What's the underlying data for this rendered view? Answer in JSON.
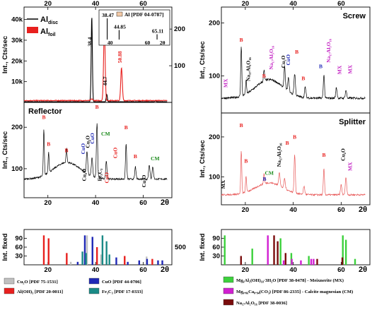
{
  "chart_data": [
    {
      "panel": "al",
      "type": "line",
      "xlim": [
        10,
        72
      ],
      "ylim": [
        0,
        46000
      ],
      "ylim_right": [
        0,
        260
      ],
      "top_ticks": [
        "20",
        "40",
        "60"
      ],
      "yticks": [
        {
          "v": 10000,
          "t": "10k"
        },
        {
          "v": 20000,
          "t": "20k"
        },
        {
          "v": 30000,
          "t": "30k"
        },
        {
          "v": 40000,
          "t": "40k"
        }
      ],
      "yticks_right": [
        {
          "v": 100,
          "t": "100"
        },
        {
          "v": 200,
          "t": "200"
        }
      ],
      "ylabel": "Int., Cts/sec",
      "legend": [
        {
          "main": "Al",
          "sub": "disc",
          "color": "#000000"
        },
        {
          "main": "Al",
          "sub": "foil",
          "color": "#e8201e"
        }
      ],
      "series": [
        {
          "name": "Al disc",
          "color": "#000000",
          "axis": "left",
          "baseline": 300,
          "peaks": [
            [
              38.4,
              41000,
              0.35
            ],
            [
              44.7,
              3500,
              0.35
            ],
            [
              65.1,
              400,
              0.4
            ]
          ]
        },
        {
          "name": "Al foil",
          "color": "#e8201e",
          "axis": "right",
          "baseline": 5,
          "peaks": [
            [
              43.68,
              205,
              0.45
            ],
            [
              50.88,
              90,
              0.45
            ],
            [
              38.4,
              4,
              0.6
            ]
          ]
        }
      ],
      "peak_labels": [
        {
          "x": 38.4,
          "y": 27000,
          "text": "38.4",
          "color": "#000000",
          "rot": -90
        },
        {
          "x": 43.68,
          "y": 37000,
          "text": "43.68",
          "color": "#e8201e",
          "rot": -90
        },
        {
          "x": 44.7,
          "y": 8000,
          "text": "44.7",
          "color": "#000000",
          "rot": -90
        },
        {
          "x": 50.88,
          "y": 19000,
          "text": "50.88",
          "color": "#e8201e",
          "rot": -90
        }
      ],
      "inset": {
        "title": "Al [PDF 04-0787]",
        "swatch": "#f2c9a6",
        "xlim": [
          36,
          70
        ],
        "ticks": [
          "40",
          "60",
          "2θ"
        ],
        "lines": [
          {
            "x": 38.47,
            "h": 1.0,
            "label": "38.47"
          },
          {
            "x": 44.85,
            "h": 0.45,
            "label": "44.85"
          },
          {
            "x": 65.11,
            "h": 0.25,
            "label": "65.11"
          }
        ]
      }
    },
    {
      "panel": "reflector",
      "type": "line",
      "title": "Reflector",
      "xlim": [
        10,
        72
      ],
      "ylim": [
        30,
        260
      ],
      "xticks": [
        "20",
        "40",
        "60",
        "2θ"
      ],
      "yticks": [
        {
          "v": 100,
          "t": "100"
        },
        {
          "v": 200,
          "t": "200"
        }
      ],
      "ylabel": "Int., Cts/sec",
      "series": [
        {
          "name": "Reflector",
          "color": "#000000",
          "baseline": 75,
          "hump": [
            28,
            40,
            0.2
          ],
          "peaks": [
            [
              18.3,
              110,
              0.3
            ],
            [
              20.3,
              50,
              0.3
            ],
            [
              27.8,
              35,
              0.3
            ],
            [
              36.4,
              55,
              0.4
            ],
            [
              38.5,
              45,
              0.4
            ],
            [
              40.6,
              130,
              0.35
            ],
            [
              44.5,
              45,
              0.35
            ],
            [
              52.8,
              85,
              0.35
            ],
            [
              56.7,
              30,
              0.35
            ],
            [
              62.5,
              35,
              0.4
            ],
            [
              64.0,
              30,
              0.4
            ]
          ]
        }
      ],
      "peak_labels": [
        {
          "x": 18.3,
          "y": 220,
          "text": "B",
          "color": "#e8201e"
        },
        {
          "x": 20.3,
          "y": 155,
          "text": "B",
          "color": "#e8201e"
        },
        {
          "x": 27.8,
          "y": 140,
          "text": "B",
          "color": "#e8201e"
        },
        {
          "x": 35.5,
          "y": 135,
          "text": "CuO",
          "color": "#1f28b6",
          "rot": -90
        },
        {
          "x": 37.5,
          "y": 150,
          "text": "Cu₂O",
          "color": "#000000",
          "rot": -90
        },
        {
          "x": 39.3,
          "y": 160,
          "text": "CuO",
          "color": "#1f28b6",
          "rot": -90
        },
        {
          "x": 40.6,
          "y": 245,
          "text": "B",
          "color": "#e8201e"
        },
        {
          "x": 44.2,
          "y": 180,
          "text": "CM",
          "color": "#1b8a1b"
        },
        {
          "x": 36.0,
          "y": 70,
          "text": "Cu₂O",
          "color": "#000000",
          "rot": -90
        },
        {
          "x": 42.5,
          "y": 70,
          "text": "Fe₃C₃",
          "color": "#000000",
          "rot": -90
        },
        {
          "x": 45.5,
          "y": 65,
          "text": "CuO",
          "color": "#e8201e",
          "rot": -90
        },
        {
          "x": 49.0,
          "y": 125,
          "text": "CuO",
          "color": "#e8201e",
          "rot": -90
        },
        {
          "x": 52.8,
          "y": 195,
          "text": "B",
          "color": "#e8201e"
        },
        {
          "x": 56.7,
          "y": 125,
          "text": "B",
          "color": "#e8201e"
        },
        {
          "x": 61.0,
          "y": 55,
          "text": "Cu₂O",
          "color": "#000000",
          "rot": -90
        },
        {
          "x": 65.0,
          "y": 120,
          "text": "CM",
          "color": "#1b8a1b"
        }
      ]
    },
    {
      "panel": "ref-left",
      "type": "bar",
      "ylabel": "Int. fixed",
      "xlim": [
        10,
        72
      ],
      "ylim": [
        0,
        120
      ],
      "yticks": [
        {
          "v": 30,
          "t": "30"
        },
        {
          "v": 60,
          "t": "60"
        },
        {
          "v": 90,
          "t": "90"
        }
      ],
      "right_tick": "500",
      "xticks": [
        "20",
        "40",
        "60",
        "2θ"
      ],
      "series": [
        {
          "name": "Cu₂O [PDF 75-1531]",
          "color": "#c0c0c0",
          "x": [
            29.6,
            36.4,
            42.3,
            61.4,
            73.5
          ],
          "values": [
            10,
            100,
            35,
            28,
            20
          ]
        },
        {
          "name": "CuO [PDF 44-0706]",
          "color": "#1f28b6",
          "x": [
            32.5,
            35.5,
            38.7,
            48.7,
            53.5,
            58.3,
            61.6,
            66.2,
            68.0
          ],
          "values": [
            10,
            100,
            95,
            25,
            10,
            15,
            20,
            15,
            15
          ]
        },
        {
          "name": "Al(OH)₃ [PDF 20-0011]",
          "color": "#e8201e",
          "x": [
            18.3,
            20.3,
            27.9,
            40.6,
            52.2,
            63.8
          ],
          "values": [
            100,
            90,
            40,
            60,
            30,
            20
          ]
        },
        {
          "name": "Fe₃C₃ [PDF 17-0333]",
          "color": "#1a8a86",
          "x": [
            34.5,
            36.0,
            42.9,
            44.6,
            45.8
          ],
          "values": [
            45,
            40,
            100,
            80,
            35
          ]
        }
      ]
    },
    {
      "panel": "screw",
      "type": "line",
      "title": "Screw",
      "xlim": [
        10,
        72
      ],
      "ylim": [
        30,
        230
      ],
      "top_ticks": [
        "20",
        "40",
        "60"
      ],
      "yticks": [
        {
          "v": 100,
          "t": "100"
        },
        {
          "v": 200,
          "t": "200"
        }
      ],
      "ylabel": "Int., Cts/sec",
      "series": [
        {
          "name": "Screw",
          "color": "#000000",
          "baseline": 58,
          "hump": [
            30,
            35,
            0.2
          ],
          "peaks": [
            [
              18.3,
              95,
              0.3
            ],
            [
              20.3,
              25,
              0.3
            ],
            [
              27.8,
              20,
              0.3
            ],
            [
              36.4,
              40,
              0.4
            ],
            [
              38.0,
              25,
              0.4
            ],
            [
              40.6,
              40,
              0.4
            ],
            [
              45.0,
              20,
              0.4
            ],
            [
              52.8,
              45,
              0.35
            ],
            [
              58.0,
              20,
              0.4
            ],
            [
              62.0,
              15,
              0.4
            ]
          ]
        }
      ],
      "peak_labels": [
        {
          "x": 12.5,
          "y": 78,
          "text": "MX",
          "color": "#c21fc2",
          "rot": -90
        },
        {
          "x": 18.3,
          "y": 165,
          "text": "B",
          "color": "#e8201e"
        },
        {
          "x": 22.0,
          "y": 90,
          "text": "Na₁₇Al₅O₁₆",
          "color": "#000000",
          "rot": -90
        },
        {
          "x": 27.8,
          "y": 97,
          "text": "B",
          "color": "#e8201e"
        },
        {
          "x": 31.5,
          "y": 112,
          "text": "Na₁₇Al₅O₁₆",
          "color": "#c21fc2",
          "rot": -90
        },
        {
          "x": 36.6,
          "y": 115,
          "text": "Cu₂O",
          "color": "#000000",
          "rot": -90
        },
        {
          "x": 38.6,
          "y": 120,
          "text": "CuO",
          "color": "#1f28b6",
          "rot": -90
        },
        {
          "x": 41.5,
          "y": 142,
          "text": "B",
          "color": "#e8201e"
        },
        {
          "x": 44.2,
          "y": 92,
          "text": "B",
          "color": "#e8201e"
        },
        {
          "x": 51.5,
          "y": 115,
          "text": "B",
          "color": "#1f28b6"
        },
        {
          "x": 55.5,
          "y": 125,
          "text": "Na₁₇Al₅O₁₆",
          "color": "#c21fc2",
          "rot": -90
        },
        {
          "x": 60.0,
          "y": 103,
          "text": "MX",
          "color": "#c21fc2",
          "rot": -90
        },
        {
          "x": 64.5,
          "y": 104,
          "text": "MX",
          "color": "#c21fc2",
          "rot": -90
        }
      ]
    },
    {
      "panel": "splitter",
      "type": "line",
      "title": "Splitter",
      "xlim": [
        10,
        72
      ],
      "ylim": [
        30,
        260
      ],
      "xticks": [
        "20",
        "40",
        "60",
        "2θ"
      ],
      "yticks": [
        {
          "v": 100,
          "t": "100"
        },
        {
          "v": 200,
          "t": "200"
        }
      ],
      "ylabel": "Int., Cts/sec",
      "series": [
        {
          "name": "Splitter",
          "color": "#e85a5a",
          "baseline": 55,
          "hump": [
            30,
            30,
            0.2
          ],
          "peaks": [
            [
              18.3,
              105,
              0.3
            ],
            [
              20.3,
              40,
              0.3
            ],
            [
              27.8,
              25,
              0.3
            ],
            [
              34.2,
              35,
              0.4
            ],
            [
              36.4,
              25,
              0.4
            ],
            [
              40.6,
              95,
              0.35
            ],
            [
              44.5,
              20,
              0.4
            ],
            [
              52.8,
              65,
              0.35
            ],
            [
              60.0,
              25,
              0.4
            ],
            [
              62.0,
              45,
              0.4
            ]
          ]
        }
      ],
      "peak_labels": [
        {
          "x": 11.5,
          "y": 70,
          "text": "MX",
          "color": "#000000",
          "rot": -90
        },
        {
          "x": 18.3,
          "y": 225,
          "text": "B",
          "color": "#e8201e"
        },
        {
          "x": 20.3,
          "y": 135,
          "text": "B",
          "color": "#e8201e"
        },
        {
          "x": 28.0,
          "y": 90,
          "text": "B",
          "color": "#1f28b6"
        },
        {
          "x": 30.0,
          "y": 105,
          "text": "CM",
          "color": "#1b8a1b"
        },
        {
          "x": 34.8,
          "y": 125,
          "text": "Na₁₇Al₅O₁₆",
          "color": "#000000",
          "rot": -90
        },
        {
          "x": 37.5,
          "y": 180,
          "text": "B",
          "color": "#e8201e"
        },
        {
          "x": 40.6,
          "y": 195,
          "text": "B",
          "color": "#e8201e"
        },
        {
          "x": 52.8,
          "y": 150,
          "text": "B",
          "color": "#e8201e"
        },
        {
          "x": 61.5,
          "y": 140,
          "text": "Cu₂O",
          "color": "#000000",
          "rot": -90
        },
        {
          "x": 64.5,
          "y": 115,
          "text": "MX",
          "color": "#c21fc2",
          "rot": -90
        }
      ]
    },
    {
      "panel": "ref-right",
      "type": "bar",
      "ylabel": "Int. fixed",
      "xlim": [
        10,
        72
      ],
      "ylim": [
        0,
        120
      ],
      "yticks": [
        {
          "v": 30,
          "t": "30"
        },
        {
          "v": 60,
          "t": "60"
        },
        {
          "v": 90,
          "t": "90"
        }
      ],
      "xticks": [
        "20",
        "40",
        "60",
        "2θ"
      ],
      "series": [
        {
          "name": "Mg₆Al₂(OH)₁₈·3H₂O [PDF 38-0478] - Meixnerite (MX)",
          "color": "#3cd13c",
          "x": [
            11.4,
            22.9,
            34.7,
            39.2,
            46.5,
            60.7,
            62.0,
            65.8
          ],
          "values": [
            100,
            55,
            90,
            40,
            30,
            100,
            85,
            20
          ]
        },
        {
          "name": "Mg₀.₀₆Ca₀.₉₄(CO₃) [PDF 86-2335] - Calcite magnesian (CM)",
          "color": "#d11fd1",
          "x": [
            29.4,
            36.0,
            39.4,
            43.2,
            47.5,
            48.5
          ],
          "values": [
            100,
            15,
            20,
            15,
            20,
            20
          ]
        },
        {
          "name": "Na₁₇Al₅O₁₆ [PDF 38-0036]",
          "color": "#7a0c0c",
          "x": [
            18.2,
            32.0,
            33.5,
            36.8,
            50.0,
            60.5
          ],
          "values": [
            30,
            100,
            80,
            40,
            20,
            25
          ]
        }
      ]
    }
  ],
  "legend_left": [
    {
      "label": "Cu₂O [PDF 75-1531]",
      "color": "#c0c0c0"
    },
    {
      "label": "CuO [PDF 44-0706]",
      "color": "#1f28b6"
    },
    {
      "label": "Al(OH)₃ [PDF 20-0011]",
      "color": "#e8201e"
    },
    {
      "label": "Fe₃C₃ [PDF 17-0333]",
      "color": "#1a8a86"
    }
  ],
  "legend_right": [
    {
      "label": "Mg₆Al₂(OH)₁₈·3H₂O [PDF 38-0478] - Meixnerite (MX)",
      "color": "#3cd13c"
    },
    {
      "label": "Mg₀.₀₆Ca₀.₉₄(CO₃) [PDF 86-2335] - Calcite magnesian (CM)",
      "color": "#d11fd1"
    },
    {
      "label": "Na₁₇Al₅O₁₆ [PDF 38-0036]",
      "color": "#7a0c0c"
    }
  ]
}
